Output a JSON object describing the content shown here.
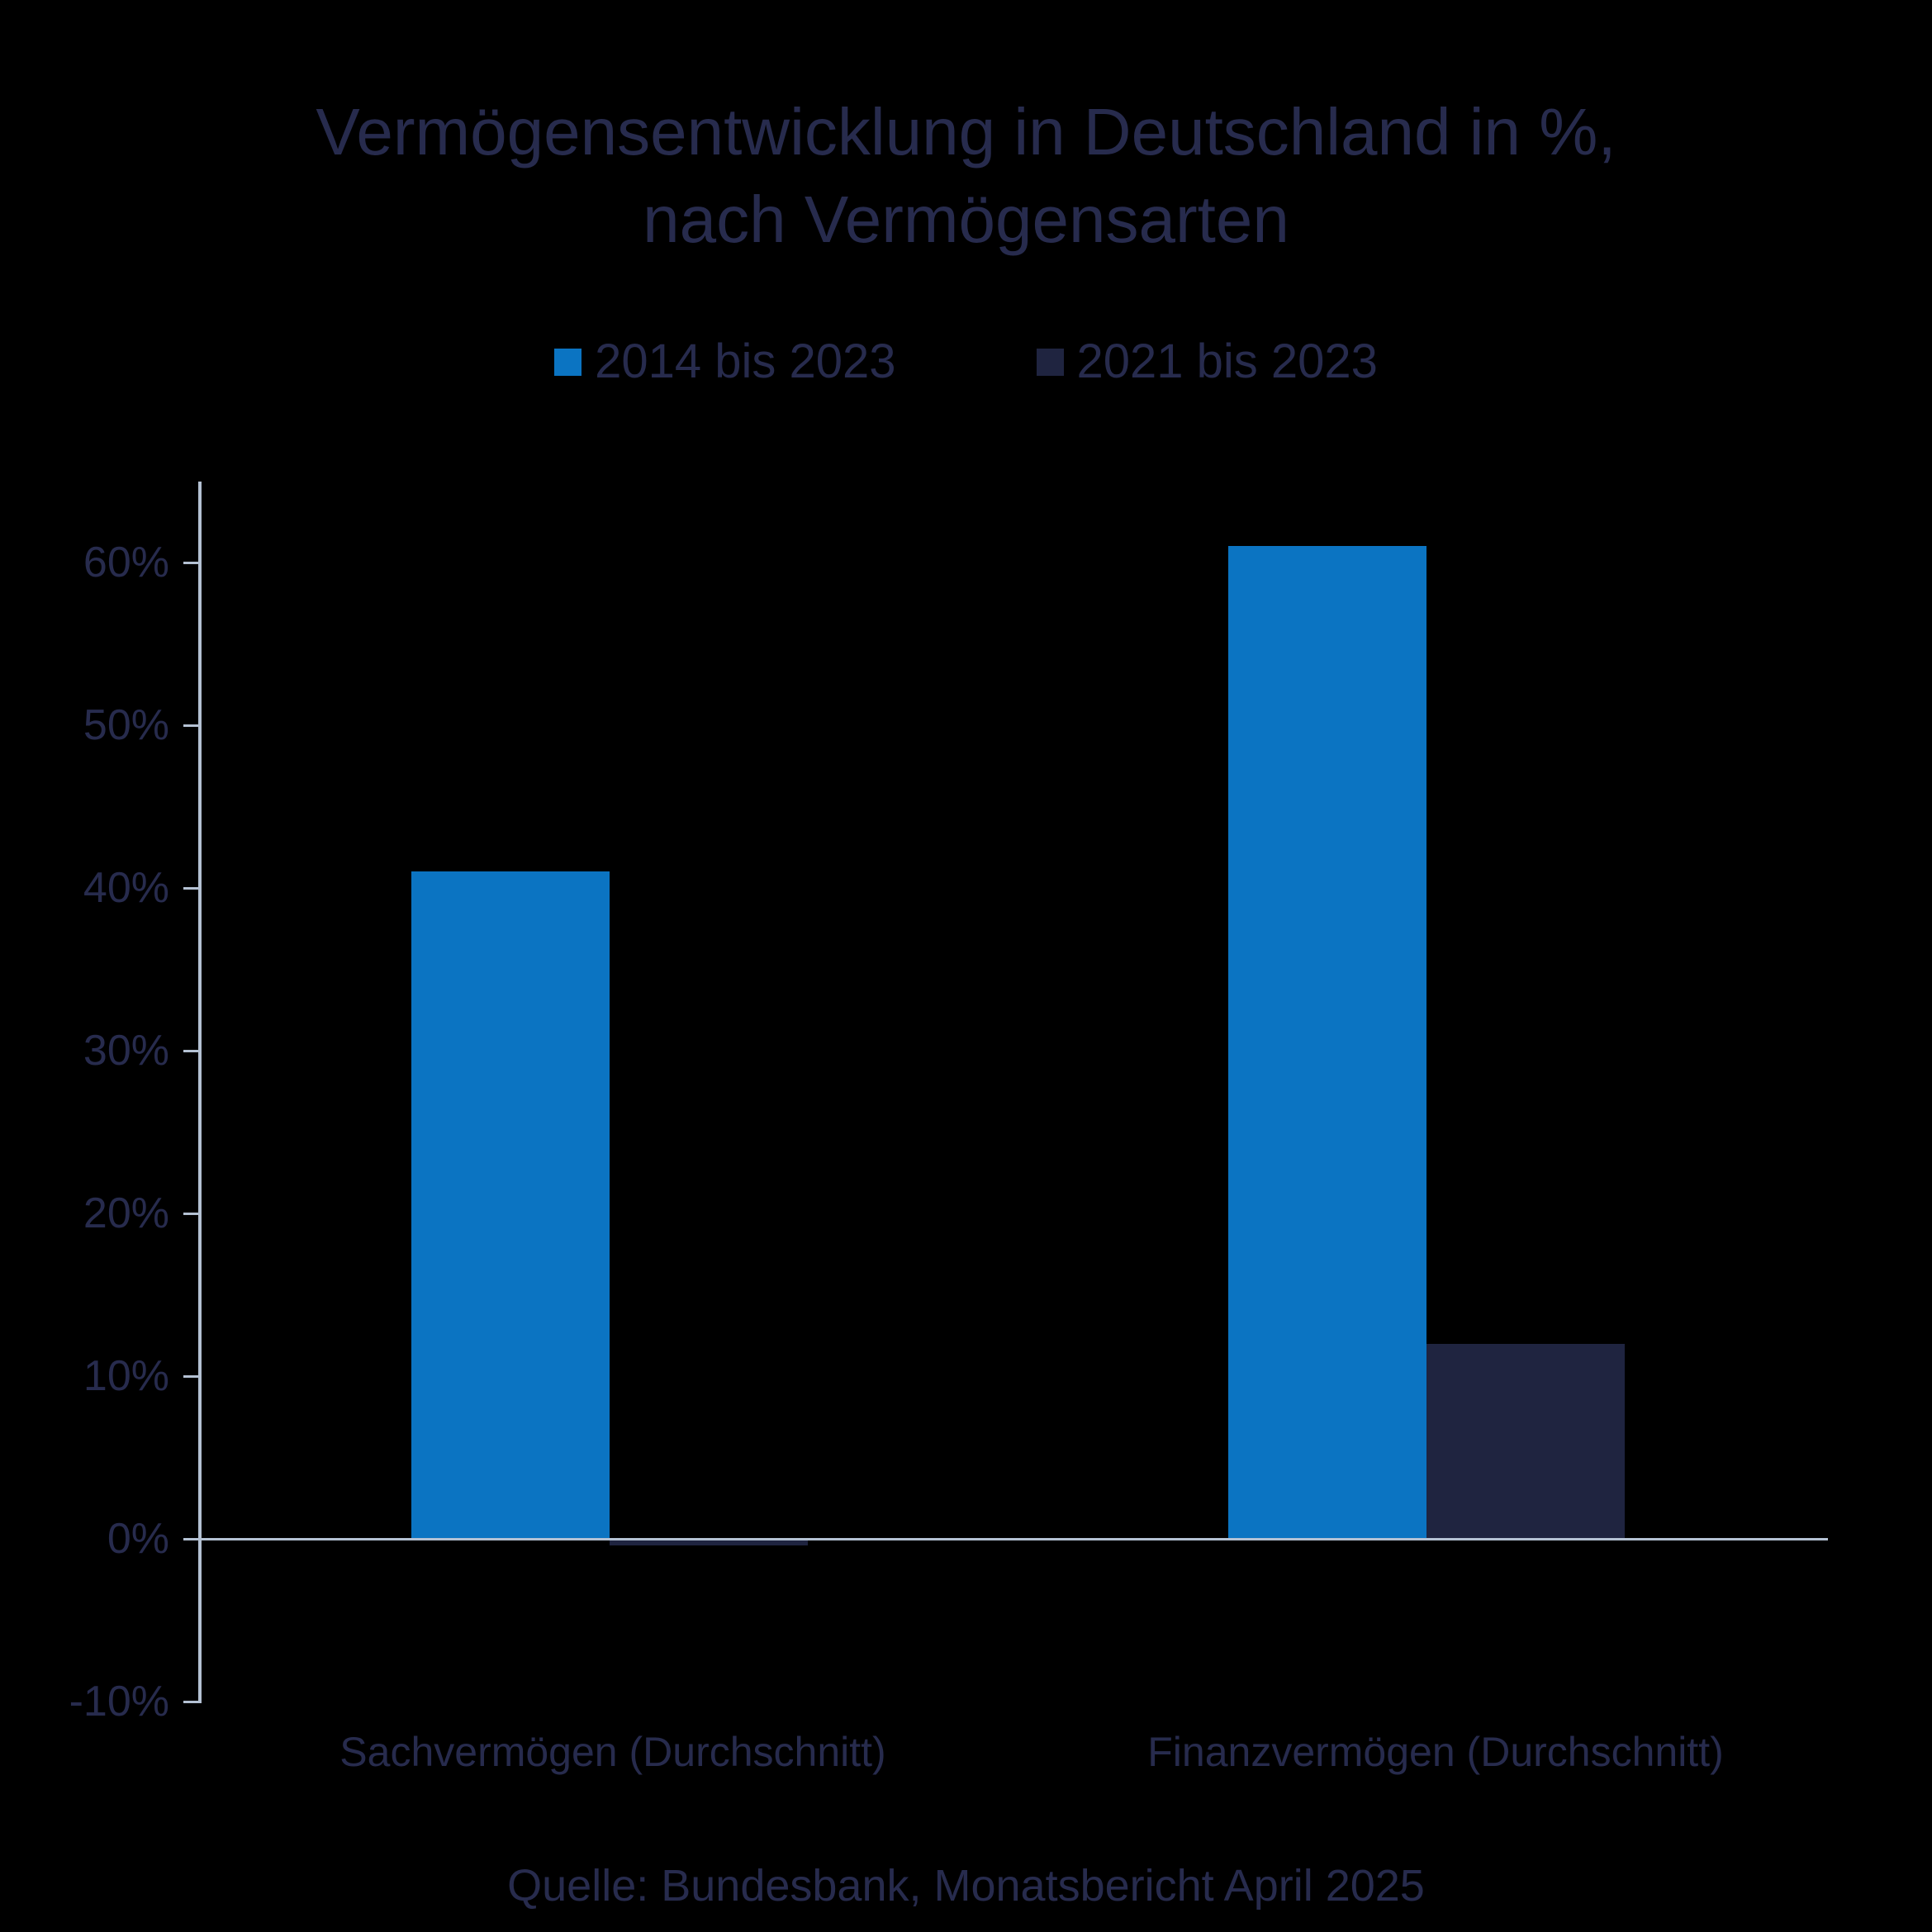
{
  "page": {
    "background_color": "#000000",
    "text_color": "#272b4d",
    "axis_color": "#b4c1d3"
  },
  "chart_data": {
    "type": "bar",
    "title": "Vermögensentwicklung in Deutschland in %, nach Vermögensarten",
    "title_line1": "Vermögensentwicklung in Deutschland in %,",
    "title_line2": "nach Vermögensarten",
    "categories": [
      "Sachvermögen (Durchschnitt)",
      "Finanzvermögen (Durchschnitt)"
    ],
    "series": [
      {
        "name": "2014 bis 2023",
        "color": "#0b74c2",
        "values": [
          41,
          61
        ]
      },
      {
        "name": "2021 bis 2023",
        "color": "#1f2440",
        "values": [
          -0.3,
          12
        ]
      }
    ],
    "ylabel": "",
    "ytick_suffix": "%",
    "yticks": [
      60,
      50,
      40,
      30,
      20,
      10,
      0,
      -10
    ],
    "ylim": [
      -13,
      65
    ],
    "grid": false,
    "legend_position": "top",
    "source": "Quelle: Bundesbank, Monatsbericht April 2025"
  }
}
